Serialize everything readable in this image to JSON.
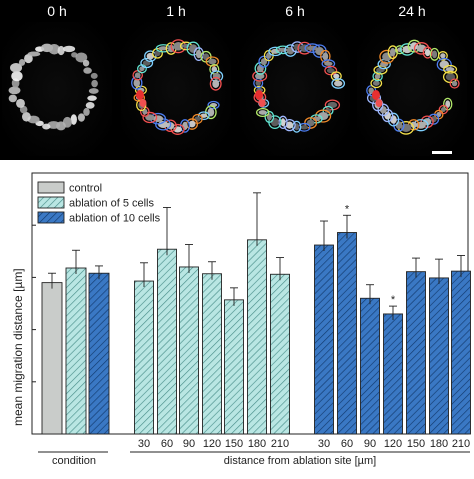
{
  "panels": [
    {
      "label": "0 h"
    },
    {
      "label": "1 h"
    },
    {
      "label": "6 h"
    },
    {
      "label": "24 h"
    }
  ],
  "chart_data": {
    "type": "bar",
    "ylabel": "mean migration distance [µm]",
    "xlabel": "distance from ablation site [µm]",
    "group_label_condition": "condition",
    "ylim": [
      0,
      50
    ],
    "legend_position": "top-left",
    "colors": {
      "control": "#c9ccca",
      "five": "#b9e6e3",
      "ten": "#3a78c4",
      "edge": "#222222"
    },
    "legend": [
      {
        "key": "control",
        "name": "control"
      },
      {
        "key": "five",
        "name": "ablation of 5 cells"
      },
      {
        "key": "ten",
        "name": "ablation of 10 cells"
      }
    ],
    "groups": [
      {
        "key": "condition",
        "categories": [
          "",
          "",
          ""
        ],
        "values": [
          29.0,
          31.8,
          30.8
        ],
        "errors": [
          1.8,
          3.4,
          1.4
        ],
        "fills": [
          "control",
          "five",
          "ten"
        ],
        "stars": [
          "",
          "",
          ""
        ]
      },
      {
        "key": "five",
        "categories": [
          "30",
          "60",
          "90",
          "120",
          "150",
          "180",
          "210"
        ],
        "values": [
          29.3,
          35.4,
          32.0,
          30.7,
          25.7,
          37.2,
          30.6
        ],
        "errors": [
          3.5,
          8.0,
          4.3,
          2.3,
          2.3,
          9.0,
          3.2
        ],
        "fills": [
          "five",
          "five",
          "five",
          "five",
          "five",
          "five",
          "five"
        ],
        "stars": [
          "",
          "",
          "",
          "",
          "",
          "",
          ""
        ]
      },
      {
        "key": "ten",
        "categories": [
          "30",
          "60",
          "90",
          "120",
          "150",
          "180",
          "210"
        ],
        "values": [
          36.2,
          38.6,
          26.0,
          23.0,
          31.1,
          29.9,
          31.2
        ],
        "errors": [
          4.6,
          3.3,
          2.6,
          1.5,
          2.6,
          3.6,
          3.0
        ],
        "fills": [
          "ten",
          "ten",
          "ten",
          "ten",
          "ten",
          "ten",
          "ten"
        ],
        "stars": [
          "",
          "*",
          "",
          "*",
          "",
          "",
          ""
        ]
      }
    ]
  }
}
